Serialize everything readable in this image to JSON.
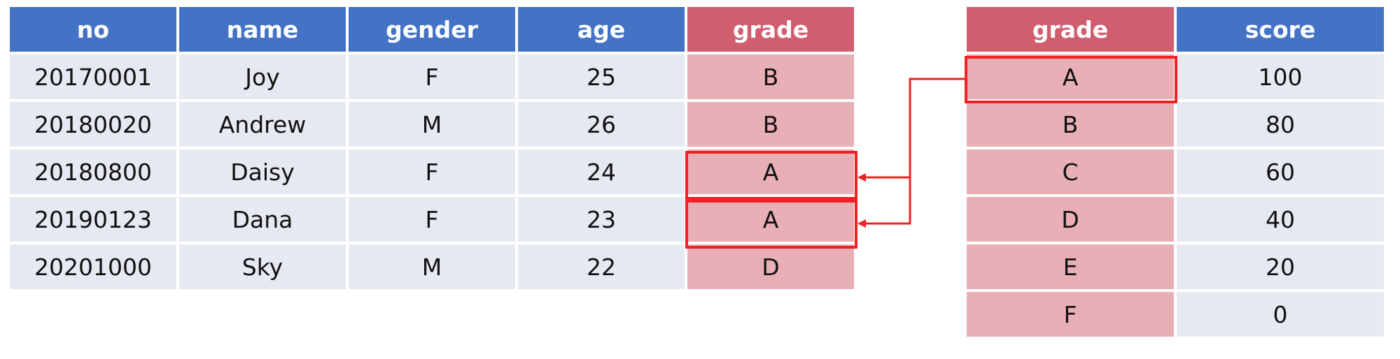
{
  "students_table": {
    "columns": [
      "no",
      "name",
      "gender",
      "age",
      "grade"
    ],
    "rows": [
      {
        "no": "20170001",
        "name": "Joy",
        "gender": "F",
        "age": "25",
        "grade": "B"
      },
      {
        "no": "20180020",
        "name": "Andrew",
        "gender": "M",
        "age": "26",
        "grade": "B"
      },
      {
        "no": "20180800",
        "name": "Daisy",
        "gender": "F",
        "age": "24",
        "grade": "A"
      },
      {
        "no": "20190123",
        "name": "Dana",
        "gender": "F",
        "age": "23",
        "grade": "A"
      },
      {
        "no": "20201000",
        "name": "Sky",
        "gender": "M",
        "age": "22",
        "grade": "D"
      }
    ]
  },
  "lookup_table": {
    "columns": [
      "grade",
      "score"
    ],
    "rows": [
      {
        "grade": "A",
        "score": "100"
      },
      {
        "grade": "B",
        "score": "80"
      },
      {
        "grade": "C",
        "score": "60"
      },
      {
        "grade": "D",
        "score": "40"
      },
      {
        "grade": "E",
        "score": "20"
      },
      {
        "grade": "F",
        "score": "0"
      }
    ]
  },
  "colors": {
    "header_blue": "#4472c4",
    "header_grade": "#d05e6f",
    "cell": "#e7e9f2",
    "grade_cell": "#e8b0b6",
    "highlight": "#ee2222"
  }
}
